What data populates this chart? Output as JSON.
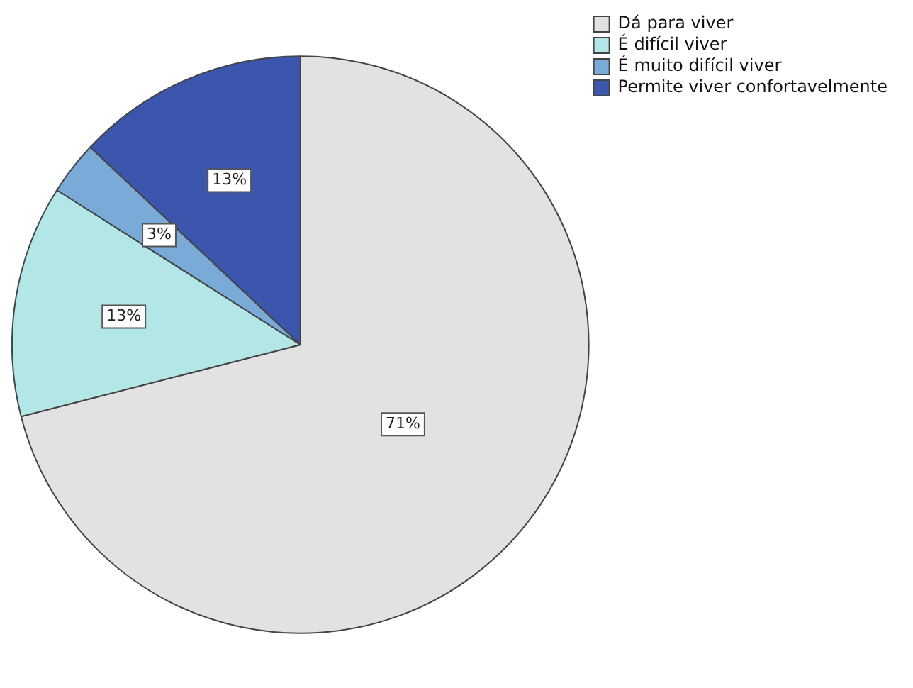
{
  "chart_data": {
    "type": "pie",
    "categories": [
      "Dá para viver",
      "É difícil viver",
      "É muito difícil viver",
      "Permite viver confortavelmente"
    ],
    "values": [
      71,
      13,
      3,
      13
    ],
    "value_labels": [
      "71%",
      "13%",
      "3%",
      "13%"
    ],
    "colors": [
      "#e2e2e2",
      "#b3e6e7",
      "#7aaad8",
      "#3d56ad"
    ],
    "legend": "top right"
  }
}
